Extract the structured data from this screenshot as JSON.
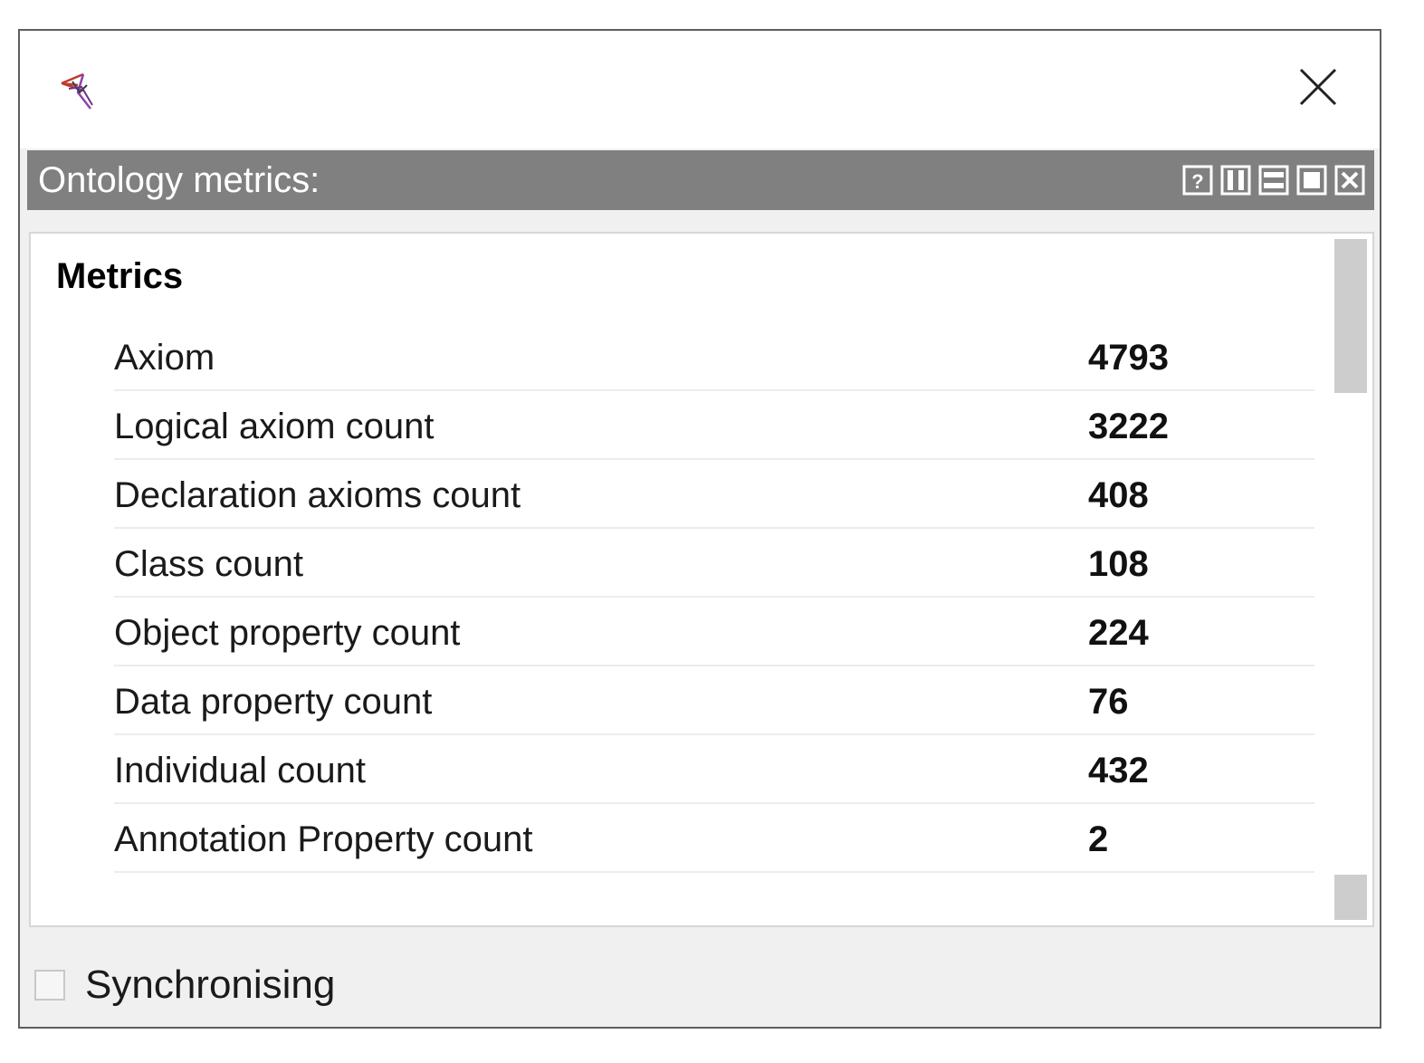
{
  "window": {
    "close_icon": "close-icon",
    "logo_icon": "protege-logo-icon"
  },
  "view": {
    "title": "Ontology metrics:",
    "buttons": [
      "help-icon",
      "split-vertical-icon",
      "split-horizontal-icon",
      "maximize-icon",
      "close-view-icon"
    ]
  },
  "metrics": {
    "section_title": "Metrics",
    "rows": [
      {
        "label": "Axiom",
        "value": "4793"
      },
      {
        "label": "Logical axiom count",
        "value": "3222"
      },
      {
        "label": "Declaration axioms count",
        "value": "408"
      },
      {
        "label": "Class count",
        "value": "108"
      },
      {
        "label": "Object property count",
        "value": "224"
      },
      {
        "label": "Data property count",
        "value": "76"
      },
      {
        "label": "Individual count",
        "value": "432"
      },
      {
        "label": "Annotation Property count",
        "value": "2"
      }
    ]
  },
  "footer": {
    "sync_label": "Synchronising",
    "sync_checked": false
  },
  "colors": {
    "header_bg": "#808080",
    "header_text": "#ffffff",
    "window_border": "#5e5e5e",
    "panel_bg": "#ffffff",
    "frame_bg": "#f0f0f0"
  }
}
